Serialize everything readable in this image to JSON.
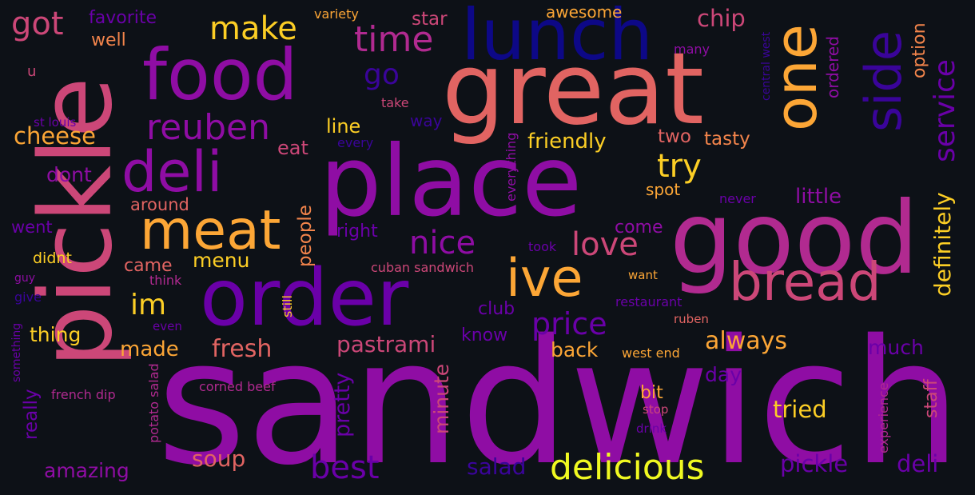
{
  "word_cloud": {
    "colors": {
      "background": "#0d1117",
      "palette": [
        "#0d0887",
        "#3a049a",
        "#6a00a8",
        "#8f0da4",
        "#b12a90",
        "#cc4778",
        "#e16462",
        "#f2844b",
        "#fca636",
        "#fcce25",
        "#f0f921"
      ]
    },
    "words": [
      {
        "text": "sandwich",
        "color": "#8f0da4"
      },
      {
        "text": "pickle",
        "color": "#cc4778"
      },
      {
        "text": "great",
        "color": "#e16462"
      },
      {
        "text": "place",
        "color": "#8f0da4"
      },
      {
        "text": "good",
        "color": "#b12a90"
      },
      {
        "text": "order",
        "color": "#6a00a8"
      },
      {
        "text": "food",
        "color": "#8f0da4"
      },
      {
        "text": "lunch",
        "color": "#0d0887"
      },
      {
        "text": "one",
        "color": "#fca636"
      },
      {
        "text": "deli",
        "color": "#8f0da4"
      },
      {
        "text": "meat",
        "color": "#fca636"
      },
      {
        "text": "side",
        "color": "#3a049a"
      },
      {
        "text": "bread",
        "color": "#cc4778"
      },
      {
        "text": "ive",
        "color": "#fca636"
      },
      {
        "text": "reuben",
        "color": "#8f0da4"
      },
      {
        "text": "time",
        "color": "#b12a90"
      },
      {
        "text": "make",
        "color": "#fcce25"
      },
      {
        "text": "got",
        "color": "#cc4778"
      },
      {
        "text": "service",
        "color": "#6a00a8"
      },
      {
        "text": "delicious",
        "color": "#f0f921"
      },
      {
        "text": "best",
        "color": "#6a00a8"
      },
      {
        "text": "nice",
        "color": "#8f0da4"
      },
      {
        "text": "love",
        "color": "#cc4778"
      },
      {
        "text": "price",
        "color": "#6a00a8"
      },
      {
        "text": "im",
        "color": "#fcce25"
      },
      {
        "text": "try",
        "color": "#fcce25"
      },
      {
        "text": "definitely",
        "color": "#fcce25"
      },
      {
        "text": "go",
        "color": "#3a049a"
      },
      {
        "text": "chip",
        "color": "#cc4778"
      },
      {
        "text": "pastrami",
        "color": "#cc4778"
      },
      {
        "text": "fresh",
        "color": "#e16462"
      },
      {
        "text": "always",
        "color": "#fca636"
      },
      {
        "text": "tried",
        "color": "#fcce25"
      },
      {
        "text": "pickle",
        "color": "#6a00a8"
      },
      {
        "text": "deli",
        "color": "#6a00a8"
      },
      {
        "text": "soup",
        "color": "#e16462"
      },
      {
        "text": "salad",
        "color": "#3a049a"
      },
      {
        "text": "cheese",
        "color": "#fca636"
      },
      {
        "text": "dont",
        "color": "#8f0da4"
      },
      {
        "text": "friendly",
        "color": "#fcce25"
      },
      {
        "text": "menu",
        "color": "#fcce25"
      },
      {
        "text": "made",
        "color": "#fca636"
      },
      {
        "text": "back",
        "color": "#fca636"
      },
      {
        "text": "much",
        "color": "#6a00a8"
      },
      {
        "text": "little",
        "color": "#8f0da4"
      },
      {
        "text": "minute",
        "color": "#cc4778"
      },
      {
        "text": "pretty",
        "color": "#6a00a8"
      },
      {
        "text": "really",
        "color": "#6a00a8"
      },
      {
        "text": "thing",
        "color": "#fcce25"
      },
      {
        "text": "amazing",
        "color": "#8f0da4"
      },
      {
        "text": "people",
        "color": "#f2844b"
      },
      {
        "text": "staff",
        "color": "#cc4778"
      },
      {
        "text": "day",
        "color": "#6a00a8"
      },
      {
        "text": "line",
        "color": "#fcce25"
      },
      {
        "text": "two",
        "color": "#e16462"
      },
      {
        "text": "tasty",
        "color": "#f2844b"
      },
      {
        "text": "eat",
        "color": "#cc4778"
      },
      {
        "text": "club",
        "color": "#6a00a8"
      },
      {
        "text": "know",
        "color": "#6a00a8"
      },
      {
        "text": "came",
        "color": "#e16462"
      },
      {
        "text": "right",
        "color": "#6a00a8"
      },
      {
        "text": "come",
        "color": "#8f0da4"
      },
      {
        "text": "bit",
        "color": "#fca636"
      },
      {
        "text": "spot",
        "color": "#fca636"
      },
      {
        "text": "option",
        "color": "#f2844b"
      },
      {
        "text": "ordered",
        "color": "#8f0da4"
      },
      {
        "text": "star",
        "color": "#cc4778"
      },
      {
        "text": "awesome",
        "color": "#fca636"
      },
      {
        "text": "favorite",
        "color": "#6a00a8"
      },
      {
        "text": "well",
        "color": "#f2844b"
      },
      {
        "text": "around",
        "color": "#e16462"
      },
      {
        "text": "went",
        "color": "#6a00a8"
      },
      {
        "text": "way",
        "color": "#3a049a"
      },
      {
        "text": "didnt",
        "color": "#fcce25"
      },
      {
        "text": "variety",
        "color": "#fca636"
      },
      {
        "text": "experience",
        "color": "#b12a90"
      },
      {
        "text": "west end",
        "color": "#fca636"
      },
      {
        "text": "central west",
        "color": "#3a049a"
      },
      {
        "text": "many",
        "color": "#8f0da4"
      },
      {
        "text": "take",
        "color": "#cc4778"
      },
      {
        "text": "every",
        "color": "#3a049a"
      },
      {
        "text": "st louis",
        "color": "#6a00a8"
      },
      {
        "text": "u",
        "color": "#cc4778"
      },
      {
        "text": "never",
        "color": "#6a00a8"
      },
      {
        "text": "took",
        "color": "#6a00a8"
      },
      {
        "text": "cuban sandwich",
        "color": "#cc4778"
      },
      {
        "text": "want",
        "color": "#fca636"
      },
      {
        "text": "restaurant",
        "color": "#6a00a8"
      },
      {
        "text": "ruben",
        "color": "#e16462"
      },
      {
        "text": "think",
        "color": "#b12a90"
      },
      {
        "text": "guy",
        "color": "#8f0da4"
      },
      {
        "text": "give",
        "color": "#3a049a"
      },
      {
        "text": "even",
        "color": "#6a00a8"
      },
      {
        "text": "still",
        "color": "#fcce25"
      },
      {
        "text": "something",
        "color": "#6a00a8"
      },
      {
        "text": "french dip",
        "color": "#b12a90"
      },
      {
        "text": "potato salad",
        "color": "#b12a90"
      },
      {
        "text": "corned beef",
        "color": "#b12a90"
      },
      {
        "text": "everything",
        "color": "#8f0da4"
      },
      {
        "text": "stop",
        "color": "#cc4778"
      },
      {
        "text": "drink",
        "color": "#6a00a8"
      }
    ]
  }
}
